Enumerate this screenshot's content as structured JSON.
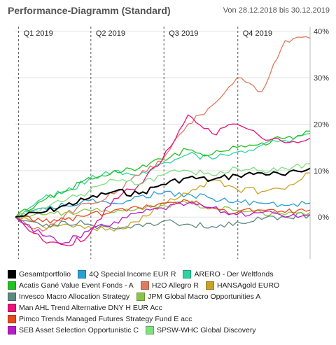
{
  "header": {
    "title": "Performance-Diagramm (Standard)",
    "range": "Von 28.12.2018 bis 30.12.2019"
  },
  "chart_data": {
    "type": "line",
    "quarters": [
      "Q1 2019",
      "Q2 2019",
      "Q3 2019",
      "Q4 2019"
    ],
    "x": [
      "2018-12-28",
      "2019-01-31",
      "2019-02-28",
      "2019-03-29",
      "2019-04-30",
      "2019-05-31",
      "2019-06-28",
      "2019-07-31",
      "2019-08-30",
      "2019-09-30",
      "2019-10-31",
      "2019-11-29",
      "2019-12-30"
    ],
    "yticks": [
      "0%",
      "10%",
      "20%",
      "30%",
      "40%"
    ],
    "ylim": [
      -9,
      41
    ],
    "grid": true,
    "series": [
      {
        "name": "Gesamtportfolio",
        "color": "#000000",
        "values": [
          0,
          1.0,
          2.5,
          4.0,
          5.5,
          5.0,
          7.0,
          8.5,
          8.0,
          9.0,
          9.5,
          9.0,
          10.5
        ]
      },
      {
        "name": "4Q Special Income EUR R",
        "color": "#2a9fd6",
        "values": [
          0,
          2.0,
          2.5,
          3.5,
          3.0,
          4.5,
          5.0,
          5.0,
          4.0,
          3.5,
          3.0,
          2.5,
          3.0
        ]
      },
      {
        "name": "ARERO - Der Weltfonds",
        "color": "#2dd4a0",
        "values": [
          0,
          4.0,
          5.5,
          8.0,
          10.0,
          9.0,
          11.5,
          13.5,
          12.5,
          14.0,
          15.5,
          16.5,
          18.0
        ]
      },
      {
        "name": "Acatis Gané Value Event Fonds - A",
        "color": "#22c022",
        "values": [
          0,
          3.5,
          5.5,
          8.5,
          10.0,
          10.5,
          12.5,
          14.5,
          13.5,
          15.0,
          16.0,
          17.0,
          18.5
        ]
      },
      {
        "name": "H2O Allegro R",
        "color": "#e07a5f",
        "values": [
          0,
          -3.0,
          0.5,
          3.0,
          5.0,
          9.0,
          12.0,
          20.0,
          24.0,
          30.0,
          27.0,
          38.0,
          38.5
        ]
      },
      {
        "name": "HANSAgold EURO",
        "color": "#c9a227",
        "values": [
          0,
          -2.0,
          -1.5,
          -2.0,
          -3.0,
          -1.0,
          3.0,
          5.0,
          8.0,
          6.0,
          5.5,
          6.0,
          9.5
        ]
      },
      {
        "name": "Invesco Macro Allocation Strategy",
        "color": "#5e8a80",
        "values": [
          0,
          -2.0,
          -1.0,
          -1.5,
          -2.5,
          -1.5,
          -1.0,
          -1.5,
          -2.0,
          -1.0,
          -0.5,
          0.0,
          0.5
        ]
      },
      {
        "name": "JPM Global Macro Opportunities A",
        "color": "#8bc34a",
        "values": [
          0,
          0.5,
          1.0,
          1.5,
          1.0,
          2.0,
          2.5,
          3.0,
          2.0,
          1.5,
          1.0,
          0.5,
          1.0
        ]
      },
      {
        "name": "Man AHL Trend Alternative DNY H EUR Acc",
        "color": "#e8147a",
        "values": [
          0,
          -5.0,
          -6.0,
          -4.0,
          4.0,
          7.0,
          12.0,
          22.0,
          18.0,
          20.0,
          17.0,
          16.0,
          17.0
        ]
      },
      {
        "name": "Pimco Trends Managed Futures Strategy Fund E acc",
        "color": "#e64a19",
        "values": [
          0,
          -1.0,
          -0.5,
          0.5,
          1.5,
          2.0,
          3.0,
          3.5,
          2.0,
          1.0,
          1.5,
          1.0,
          1.5
        ]
      },
      {
        "name": "SEB Asset Selection Opportunistic C",
        "color": "#b71cc9",
        "values": [
          0,
          -4.0,
          -5.5,
          -3.0,
          -1.0,
          1.0,
          2.0,
          3.0,
          2.0,
          0.5,
          1.0,
          0.0,
          0.5
        ]
      },
      {
        "name": "SPSW-WHC Global Discovery",
        "color": "#7fe07f",
        "values": [
          0,
          2.0,
          3.5,
          5.5,
          8.0,
          7.0,
          9.0,
          10.0,
          9.0,
          10.5,
          10.0,
          10.5,
          11.5
        ]
      }
    ]
  }
}
